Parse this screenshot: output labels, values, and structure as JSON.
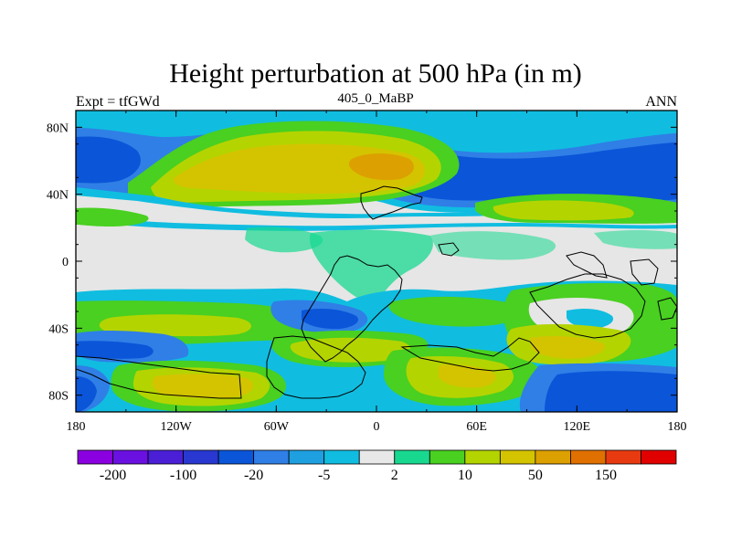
{
  "title": "Height perturbation at 500 hPa (in m)",
  "left_label": "Expt = tfGWd",
  "center_label": "405_0_MaBP",
  "right_label": "ANN",
  "map": {
    "projection": "cylindrical-equidistant",
    "lon_range": [
      -180,
      180
    ],
    "lat_range": [
      -90,
      90
    ],
    "lat_ticks": [
      {
        "value": 80,
        "label": "80N"
      },
      {
        "value": 40,
        "label": "40N"
      },
      {
        "value": 0,
        "label": "0"
      },
      {
        "value": -40,
        "label": "40S"
      },
      {
        "value": -80,
        "label": "80S"
      }
    ],
    "lon_ticks": [
      {
        "value": -180,
        "label": "180"
      },
      {
        "value": -120,
        "label": "120W"
      },
      {
        "value": -60,
        "label": "60W"
      },
      {
        "value": 0,
        "label": "0"
      },
      {
        "value": 60,
        "label": "60E"
      },
      {
        "value": 120,
        "label": "120E"
      },
      {
        "value": 180,
        "label": "180"
      }
    ],
    "background_color": "#e6e6e6",
    "coastline_color": "#000000"
  },
  "colorbar": {
    "colors": [
      "#8a00e0",
      "#6a10e0",
      "#4a1fd6",
      "#2838d0",
      "#0a55d8",
      "#2f7fe6",
      "#1ea0e0",
      "#10bde0",
      "#e8e8e8",
      "#18d890",
      "#49d020",
      "#b4d400",
      "#d4c400",
      "#dca000",
      "#e07000",
      "#e83a10",
      "#e00000"
    ],
    "labels": [
      {
        "after_box": 1,
        "text": "-200"
      },
      {
        "after_box": 3,
        "text": "-100"
      },
      {
        "after_box": 5,
        "text": "-20"
      },
      {
        "after_box": 7,
        "text": "-5"
      },
      {
        "after_box": 9,
        "text": "2"
      },
      {
        "after_box": 11,
        "text": "10"
      },
      {
        "after_box": 13,
        "text": "50"
      },
      {
        "after_box": 15,
        "text": "150"
      }
    ]
  }
}
